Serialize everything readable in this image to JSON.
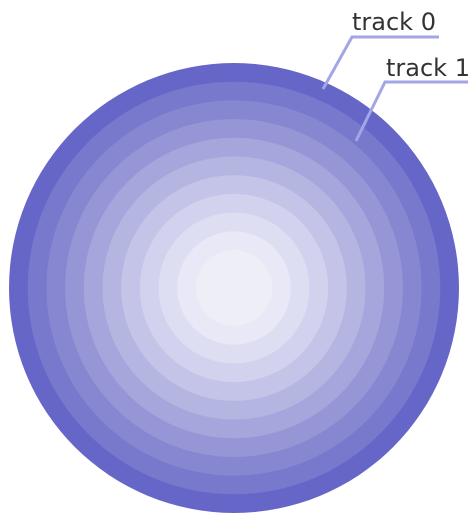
{
  "diagram": {
    "labels": [
      {
        "text": "track 0"
      },
      {
        "text": "track 1"
      }
    ],
    "track_colors": [
      "#6666c9",
      "#7878cc",
      "#8787d1",
      "#9696d6",
      "#a6a6dc",
      "#b5b5e2",
      "#c4c4e8",
      "#d2d2ee",
      "#dedef3",
      "#e8e8f6",
      "#eeeef7"
    ],
    "leader_color": "#a3a6e6",
    "background": "#ffffff"
  }
}
